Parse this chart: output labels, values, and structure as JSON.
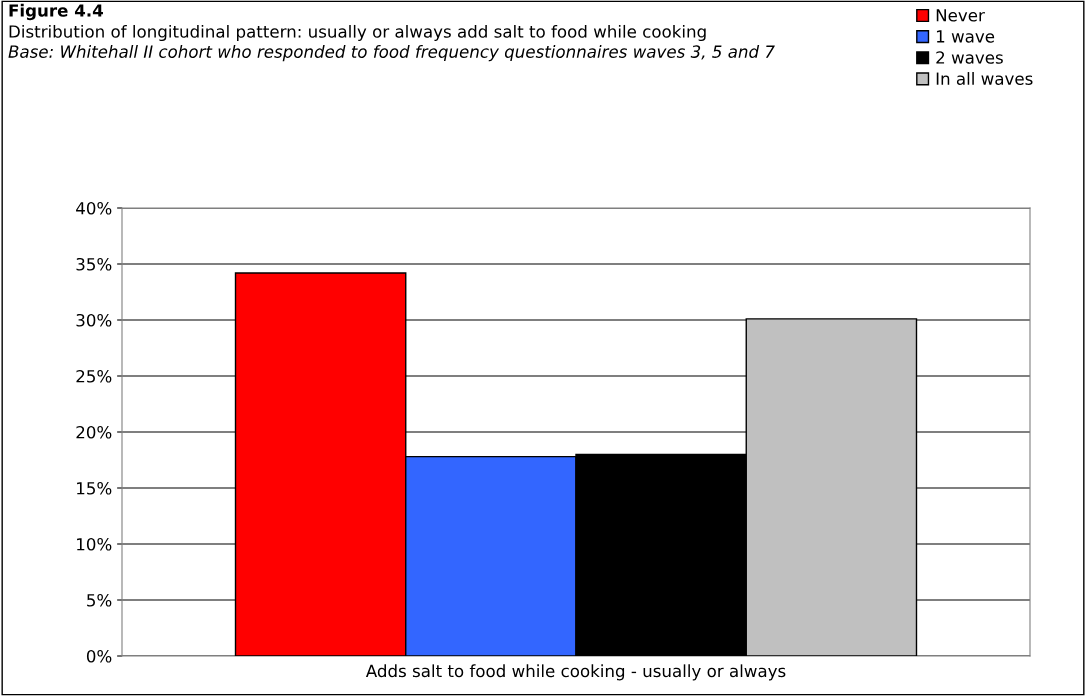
{
  "chart_data": {
    "type": "bar",
    "title": "Figure 4.4",
    "subtitle": "Distribution of longitudinal pattern: usually or always add salt to food while cooking",
    "annotations": [
      "Base: Whitehall II cohort who responded to food frequency questionnaires waves 3, 5 and 7"
    ],
    "categories": [
      "Adds salt to food while cooking - usually or always"
    ],
    "series": [
      {
        "name": "Never",
        "color": "#ff0000",
        "values": [
          34.2
        ]
      },
      {
        "name": "1 wave",
        "color": "#3366ff",
        "values": [
          17.8
        ]
      },
      {
        "name": "2 waves",
        "color": "#000000",
        "values": [
          18.0
        ]
      },
      {
        "name": "In all waves",
        "color": "#c0c0c0",
        "values": [
          30.1
        ]
      }
    ],
    "ylim": [
      0,
      40
    ],
    "yticks": [
      {
        "value": 0,
        "label": "0%"
      },
      {
        "value": 5,
        "label": "5%"
      },
      {
        "value": 10,
        "label": "10%"
      },
      {
        "value": 15,
        "label": "15%"
      },
      {
        "value": 20,
        "label": "20%"
      },
      {
        "value": 25,
        "label": "25%"
      },
      {
        "value": 30,
        "label": "30%"
      },
      {
        "value": 35,
        "label": "35%"
      },
      {
        "value": 40,
        "label": "40%"
      }
    ],
    "grid": "y",
    "legend": "top right"
  }
}
